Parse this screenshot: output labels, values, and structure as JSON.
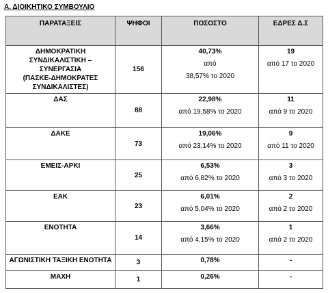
{
  "title": "Α. ΔΙΟΙΚΗΤΙΚΟ ΣΥΜΒΟΥΛΙΟ",
  "table": {
    "header": [
      "ΠΑΡΑΤΑΞΕΙΣ",
      "ΨΗΦΟΙ",
      "ΠΟΣΟΣΤΟ",
      "ΕΔΡΕΣ Δ.Σ"
    ],
    "rows": [
      {
        "party": [
          "ΔΗΜΟΚΡΑΤΙΚΗ",
          "ΣΥΝΔΙΚΑΛΙΣΤΙΚΗ – ΣΥΝΕΡΓΑΣΙΑ",
          "(ΠΑΣΚΕ-ΔΗΜΟΚΡΑΤΕΣ",
          "ΣΥΝΔΙΚΑΛΙΣΤΕΣ)"
        ],
        "votes": "156",
        "percent": "40,73%",
        "percent_note": [
          "από",
          "38,57% το 2020"
        ],
        "seats": "19",
        "seats_note": [
          "από 17 το 2020"
        ]
      },
      {
        "party": [
          "ΔΑΣ"
        ],
        "votes": "88",
        "percent": "22,98%",
        "percent_note": [
          "από 19,58% το 2020"
        ],
        "seats": "11",
        "seats_note": [
          "από 9 το 2020"
        ]
      },
      {
        "party": [
          "ΔΑΚΕ"
        ],
        "votes": "73",
        "percent": "19,06%",
        "percent_note": [
          "από 23,14% το 2020"
        ],
        "seats": "9",
        "seats_note": [
          "από 11 το 2020"
        ]
      },
      {
        "party": [
          "ΕΜΕΙΣ-ΑΡΚΙ"
        ],
        "votes": "25",
        "percent": "6,53%",
        "percent_note": [
          "από 6,82% το 2020"
        ],
        "seats": "3",
        "seats_note": [
          "από 3 το 2020"
        ]
      },
      {
        "party": [
          "ΕΑΚ"
        ],
        "votes": "23",
        "percent": "6,01%",
        "percent_note": [
          "από 5,04% το 2020"
        ],
        "seats": "2",
        "seats_note": [
          "από 2 το 2020"
        ]
      },
      {
        "party": [
          "ΕΝΟΤΗΤΑ"
        ],
        "votes": "14",
        "percent": "3,66%",
        "percent_note": [
          "από 4,15% το 2020"
        ],
        "seats": "1",
        "seats_note": [
          "από 2 το 2020"
        ]
      },
      {
        "party": [
          "ΑΓΩΝΙΣΤΙΚΗ ΤΑΞΙΚΗ ΕΝΟΤΗΤΑ"
        ],
        "votes": "3",
        "percent": "0,78%",
        "percent_note": [],
        "seats": "-",
        "seats_note": []
      },
      {
        "party": [
          "ΜΑΧΗ"
        ],
        "votes": "1",
        "percent": "0,26%",
        "percent_note": [],
        "seats": "-",
        "seats_note": []
      }
    ]
  }
}
